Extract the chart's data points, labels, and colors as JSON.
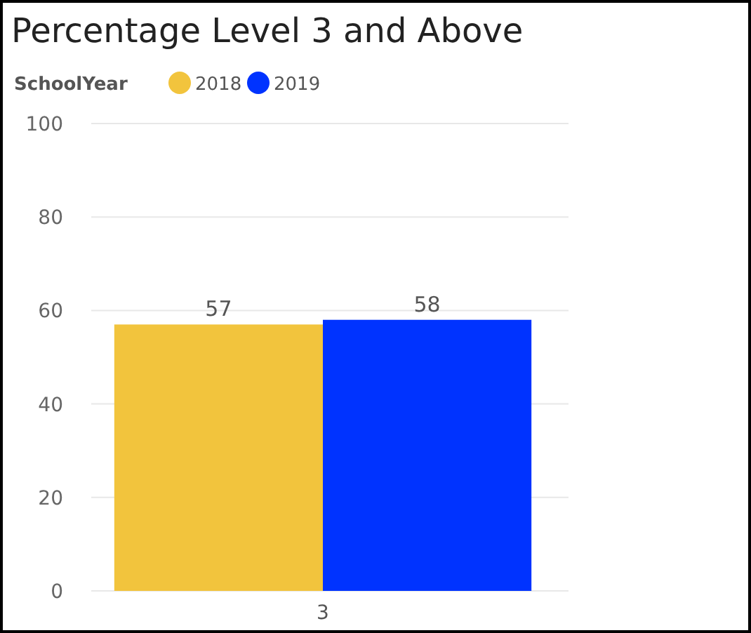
{
  "chart_data": {
    "type": "bar",
    "title": "Percentage Level 3 and Above",
    "legend_title": "SchoolYear",
    "categories": [
      "3"
    ],
    "series": [
      {
        "name": "2018",
        "color": "#f2c43d",
        "values": [
          57
        ]
      },
      {
        "name": "2019",
        "color": "#0033ff",
        "values": [
          58
        ]
      }
    ],
    "ylim": [
      0,
      100
    ],
    "yticks": [
      0,
      20,
      40,
      60,
      80,
      100
    ],
    "grid": "y",
    "legend": "top left",
    "data_labels": true
  }
}
